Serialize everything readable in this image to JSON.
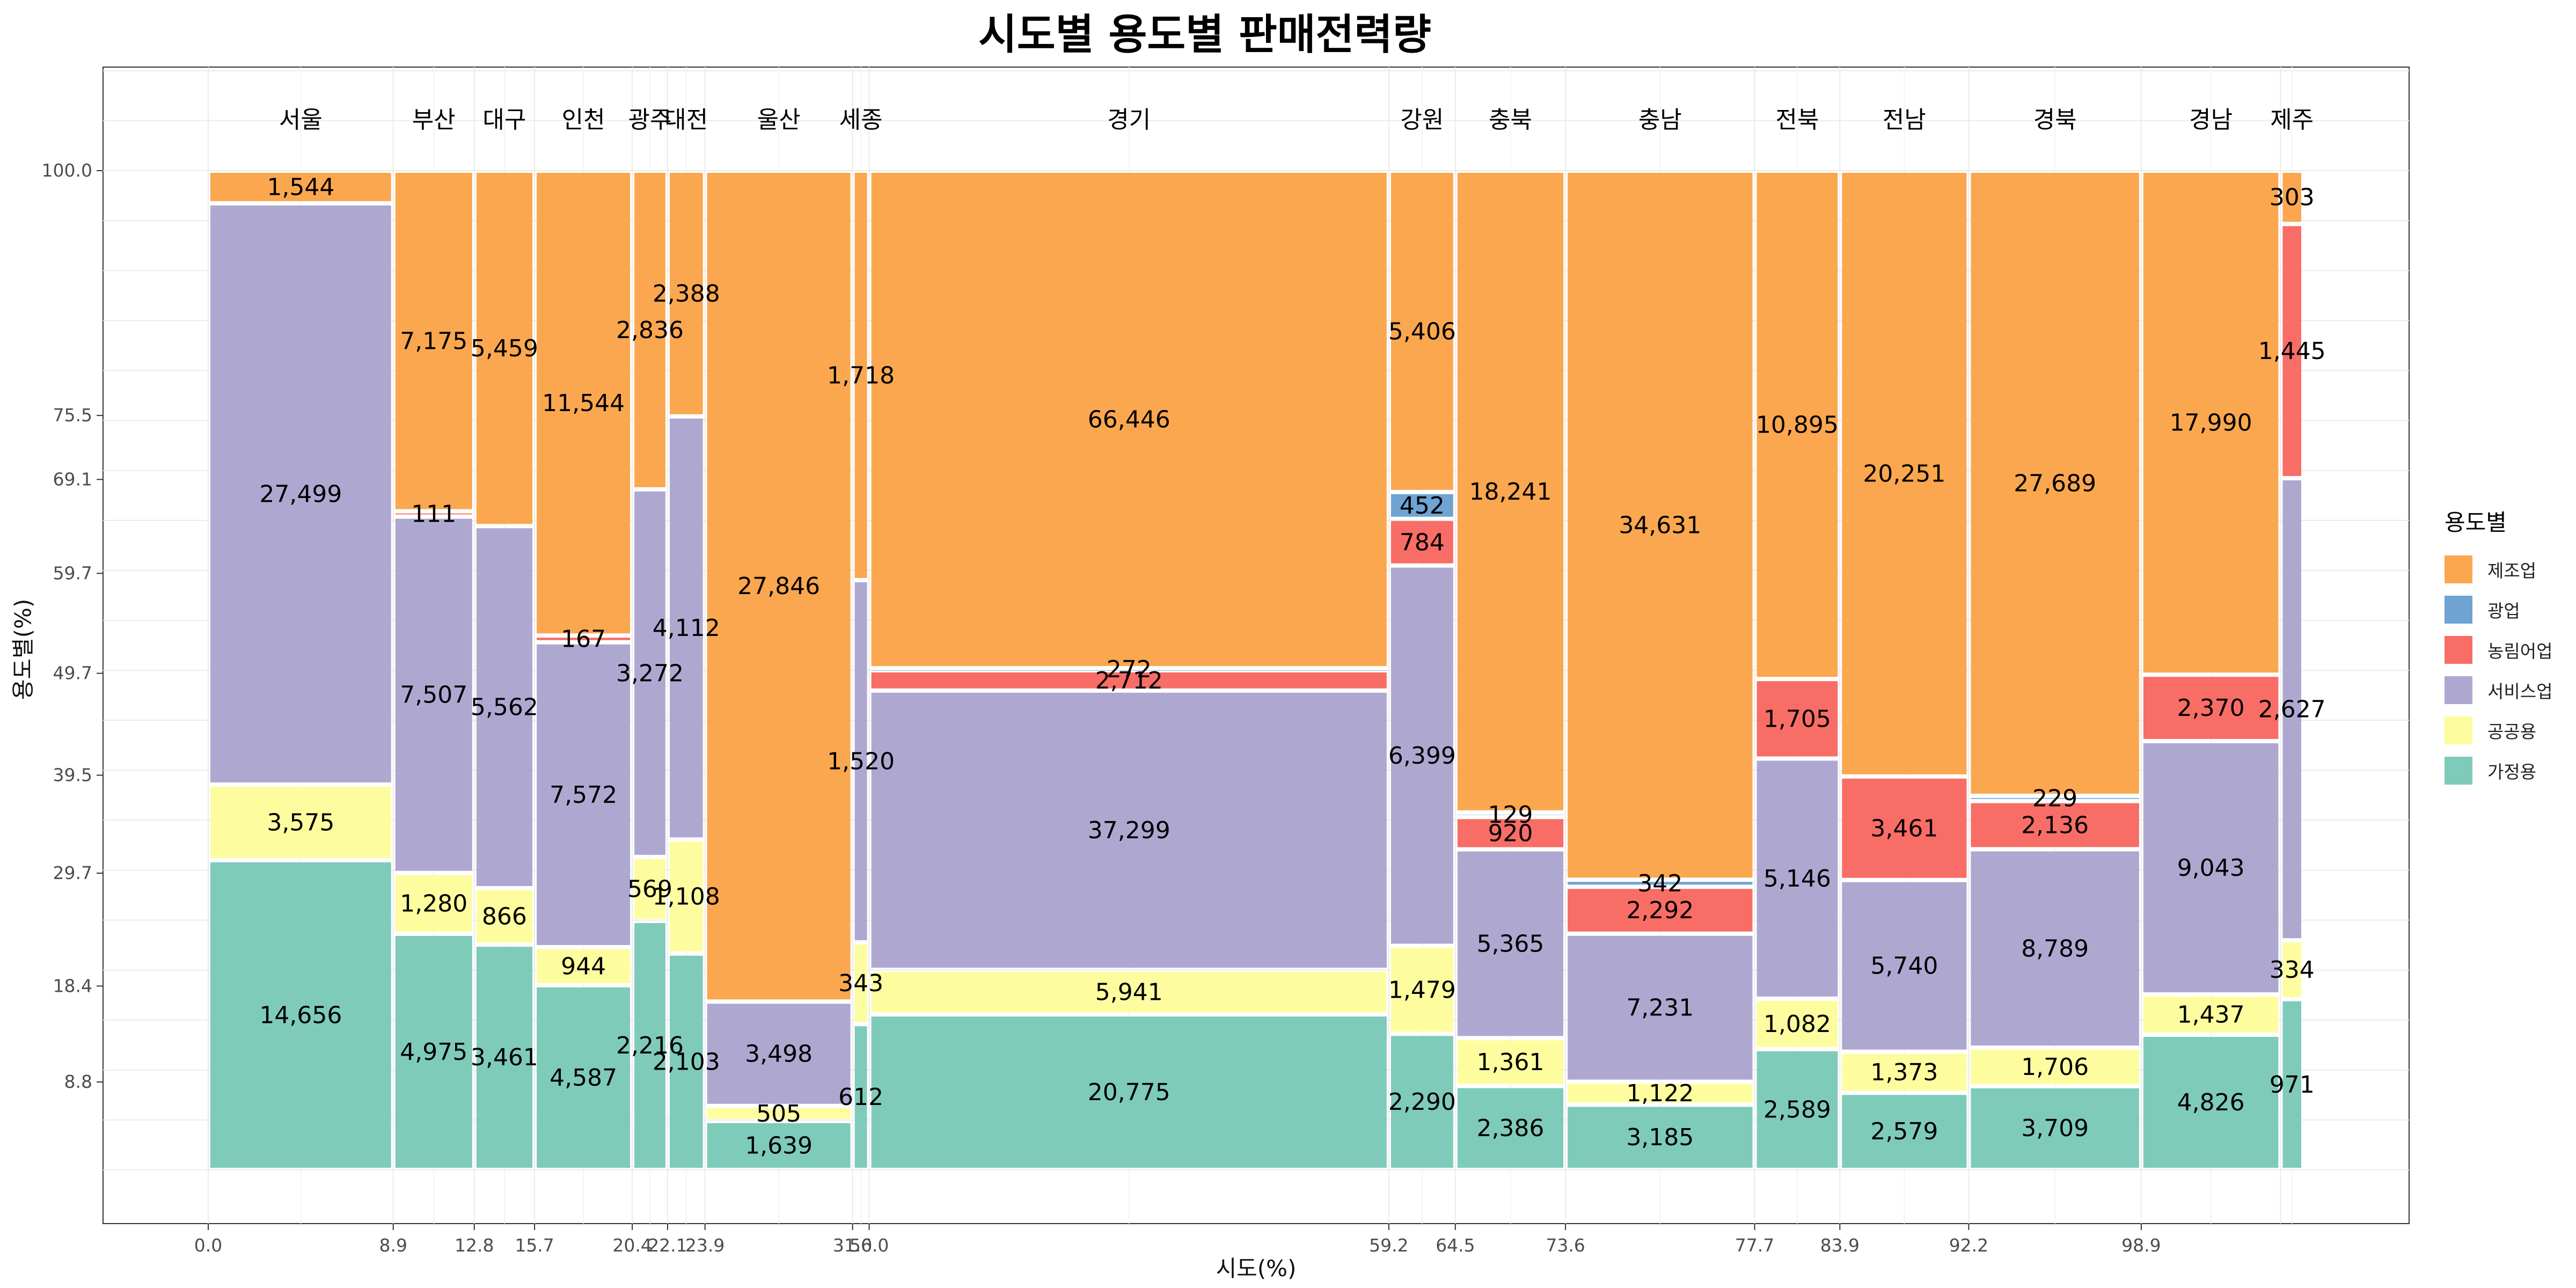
{
  "chart_data": {
    "type": "mosaic",
    "title": "시도별 용도별 판매전력량",
    "xlabel": "시도(%)",
    "ylabel": "용도별(%)",
    "legend_title": "용도별",
    "legend_position": "right",
    "categories": [
      "제조업",
      "광업",
      "농림어업",
      "서비스업",
      "공공용",
      "가정용"
    ],
    "colors": {
      "제조업": "#fba74f",
      "광업": "#6fa3d2",
      "농림어업": "#f86d66",
      "서비스업": "#aea8d1",
      "공공용": "#fdfd9f",
      "가정용": "#7fcbba"
    },
    "stack_order": [
      "가정용",
      "공공용",
      "서비스업",
      "농림어업",
      "광업",
      "제조업"
    ],
    "x_ticks": [
      "0.0",
      "8.9",
      "12.8",
      "15.7",
      "20.4",
      "22.1",
      "23.9",
      "31.0",
      "56.0",
      "59.2",
      "64.5",
      "73.6",
      "77.7",
      "83.9",
      "92.2",
      "98.9"
    ],
    "y_ticks": [
      "8.8",
      "18.4",
      "29.7",
      "39.5",
      "49.7",
      "59.7",
      "69.1",
      "75.5",
      "100.0"
    ],
    "regions": [
      {
        "name": "서울",
        "width_pct": 8.9,
        "values": {
          "가정용": 14656,
          "공공용": 3575,
          "서비스업": 27499,
          "농림어업": 0,
          "광업": 0,
          "제조업": 1544
        }
      },
      {
        "name": "부산",
        "width_pct": 3.9,
        "values": {
          "가정용": 4975,
          "공공용": 1280,
          "서비스업": 7507,
          "농림어업": 111,
          "광업": 0,
          "제조업": 7175
        }
      },
      {
        "name": "대구",
        "width_pct": 2.9,
        "values": {
          "가정용": 3461,
          "공공용": 866,
          "서비스업": 5562,
          "농림어업": 0,
          "광업": 0,
          "제조업": 5459
        }
      },
      {
        "name": "인천",
        "width_pct": 4.7,
        "values": {
          "가정용": 4587,
          "공공용": 944,
          "서비스업": 7572,
          "농림어업": 167,
          "광업": 0,
          "제조업": 11544
        }
      },
      {
        "name": "광주",
        "width_pct": 1.7,
        "values": {
          "가정용": 2216,
          "공공용": 569,
          "서비스업": 3272,
          "농림어업": 0,
          "광업": 0,
          "제조업": 2836
        }
      },
      {
        "name": "대전",
        "width_pct": 1.8,
        "values": {
          "가정용": 2103,
          "공공용": 1108,
          "서비스업": 4112,
          "농림어업": 0,
          "광업": 0,
          "제조업": 2388
        }
      },
      {
        "name": "울산",
        "width_pct": 7.1,
        "values": {
          "가정용": 1639,
          "공공용": 505,
          "서비스업": 3498,
          "농림어업": 0,
          "광업": 0,
          "제조업": 27846
        }
      },
      {
        "name": "세종",
        "width_pct": 0.8,
        "values": {
          "가정용": 612,
          "공공용": 343,
          "서비스업": 1520,
          "농림어업": 0,
          "광업": 0,
          "제조업": 1718
        }
      },
      {
        "name": "경기",
        "width_pct": 25.0,
        "values": {
          "가정용": 20775,
          "공공용": 5941,
          "서비스업": 37299,
          "농림어업": 2712,
          "광업": 272,
          "제조업": 66446
        }
      },
      {
        "name": "강원",
        "width_pct": 3.2,
        "values": {
          "가정용": 2290,
          "공공용": 1479,
          "서비스업": 6399,
          "농림어업": 784,
          "광업": 452,
          "제조업": 5406
        }
      },
      {
        "name": "충북",
        "width_pct": 5.3,
        "values": {
          "가정용": 2386,
          "공공용": 1361,
          "서비스업": 5365,
          "농림어업": 920,
          "광업": 129,
          "제조업": 18241
        }
      },
      {
        "name": "충남",
        "width_pct": 9.1,
        "values": {
          "가정용": 3185,
          "공공용": 1122,
          "서비스업": 7231,
          "농림어업": 2292,
          "광업": 342,
          "제조업": 34631
        }
      },
      {
        "name": "전북",
        "width_pct": 4.1,
        "values": {
          "가정용": 2589,
          "공공용": 1082,
          "서비스업": 5146,
          "농림어업": 1705,
          "광업": 0,
          "제조업": 10895
        }
      },
      {
        "name": "전남",
        "width_pct": 6.2,
        "values": {
          "가정용": 2579,
          "공공용": 1373,
          "서비스업": 5740,
          "농림어업": 3461,
          "광업": 0,
          "제조업": 20251
        }
      },
      {
        "name": "경북",
        "width_pct": 8.3,
        "values": {
          "가정용": 3709,
          "공공용": 1706,
          "서비스업": 8789,
          "농림어업": 2136,
          "광업": 229,
          "제조업": 27689
        }
      },
      {
        "name": "경남",
        "width_pct": 6.7,
        "values": {
          "가정용": 4826,
          "공공용": 1437,
          "서비스업": 9043,
          "농림어업": 2370,
          "광업": 0,
          "제조업": 17990
        }
      },
      {
        "name": "제주",
        "width_pct": 1.1,
        "values": {
          "가정용": 971,
          "공공용": 334,
          "서비스업": 2627,
          "농림어업": 1445,
          "광업": 0,
          "제조업": 303
        }
      }
    ]
  }
}
